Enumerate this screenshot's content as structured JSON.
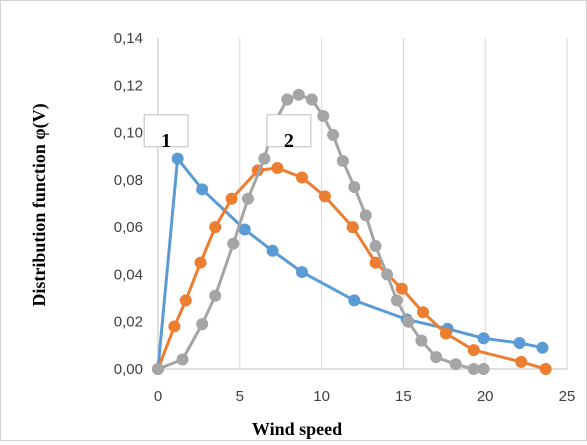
{
  "chart_data": {
    "type": "line",
    "xlabel": "Wind speed",
    "ylabel": "Distribution function φ(V)",
    "xlim": [
      0,
      25
    ],
    "ylim": [
      0,
      0.14
    ],
    "xticks": [
      "0",
      "5",
      "10",
      "15",
      "20",
      "25"
    ],
    "yticks": [
      "0,00",
      "0,02",
      "0,04",
      "0,06",
      "0,08",
      "0,10",
      "0,12",
      "0,14"
    ],
    "grid": "vertical",
    "legend": "none",
    "annotations": [
      {
        "text": "1",
        "x": 0.5,
        "y": 0.094
      },
      {
        "text": "2",
        "x": 8.0,
        "y": 0.094
      }
    ],
    "series": [
      {
        "color": "#5b9bd5",
        "points": [
          [
            0.0,
            0.0
          ],
          [
            1.2,
            0.089
          ],
          [
            2.7,
            0.076
          ],
          [
            5.3,
            0.059
          ],
          [
            7.0,
            0.05
          ],
          [
            8.8,
            0.041
          ],
          [
            12.0,
            0.029
          ],
          [
            15.2,
            0.021
          ],
          [
            17.7,
            0.017
          ],
          [
            19.9,
            0.013
          ],
          [
            22.1,
            0.011
          ],
          [
            23.5,
            0.009
          ]
        ]
      },
      {
        "color": "#ed7d31",
        "points": [
          [
            0.0,
            0.0
          ],
          [
            1.0,
            0.018
          ],
          [
            1.7,
            0.029
          ],
          [
            2.6,
            0.045
          ],
          [
            3.5,
            0.06
          ],
          [
            4.5,
            0.072
          ],
          [
            6.1,
            0.084
          ],
          [
            7.3,
            0.085
          ],
          [
            8.8,
            0.081
          ],
          [
            10.2,
            0.073
          ],
          [
            11.9,
            0.06
          ],
          [
            13.3,
            0.045
          ],
          [
            14.9,
            0.034
          ],
          [
            16.2,
            0.024
          ],
          [
            17.6,
            0.015
          ],
          [
            19.3,
            0.008
          ],
          [
            22.2,
            0.003
          ],
          [
            23.7,
            0.0
          ]
        ]
      },
      {
        "color": "#a5a5a5",
        "points": [
          [
            0.0,
            0.0
          ],
          [
            1.5,
            0.004
          ],
          [
            2.7,
            0.019
          ],
          [
            3.5,
            0.031
          ],
          [
            4.6,
            0.053
          ],
          [
            5.5,
            0.072
          ],
          [
            6.5,
            0.089
          ],
          [
            7.1,
            0.104
          ],
          [
            7.9,
            0.114
          ],
          [
            8.6,
            0.116
          ],
          [
            9.4,
            0.114
          ],
          [
            10.1,
            0.107
          ],
          [
            10.7,
            0.099
          ],
          [
            11.3,
            0.088
          ],
          [
            12.0,
            0.077
          ],
          [
            12.7,
            0.065
          ],
          [
            13.3,
            0.052
          ],
          [
            14.0,
            0.04
          ],
          [
            14.6,
            0.029
          ],
          [
            15.3,
            0.02
          ],
          [
            16.1,
            0.012
          ],
          [
            17.0,
            0.005
          ],
          [
            18.2,
            0.002
          ],
          [
            19.3,
            0.0
          ],
          [
            19.9,
            0.0
          ]
        ]
      }
    ]
  }
}
